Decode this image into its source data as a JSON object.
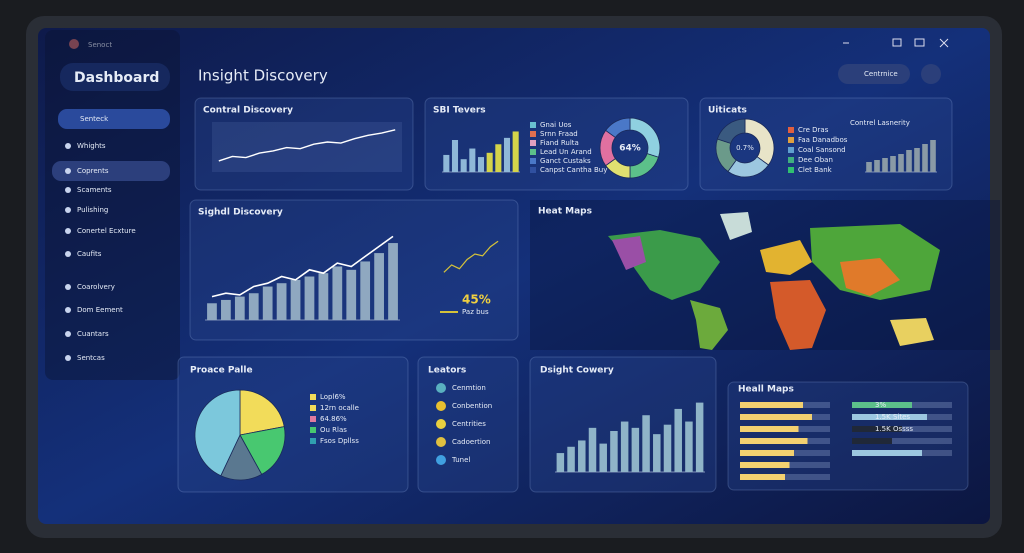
{
  "window": {
    "title": "Senoct"
  },
  "sidebar": {
    "title": "Dashboard",
    "dropdown": "Senteck",
    "items": [
      "Whights",
      "Coprents",
      "Scaments",
      "Pulishing",
      "Conertel Ecxture",
      "Caufits",
      "Coarolvery",
      "Dom Eement",
      "Cuantars",
      "Sentcas"
    ]
  },
  "header": {
    "title": "Insight Discovery",
    "button": "Centrnice"
  },
  "contral": {
    "title": "Contral Discovery",
    "values": [
      10,
      14,
      13,
      17,
      19,
      22,
      21,
      25,
      27,
      26,
      30,
      33,
      35,
      38
    ],
    "ylim": [
      0,
      45
    ],
    "color": "#ffffff"
  },
  "sbi": {
    "title": "SBI Tevers",
    "values": [
      16,
      30,
      12,
      22,
      14,
      18,
      26,
      32,
      38
    ],
    "colors": [
      "#8fb8d8",
      "#8fb8d8",
      "#8fb8d8",
      "#8fb8d8",
      "#8fb8d8",
      "#d4d44a",
      "#d4d44a",
      "#8fb8d8",
      "#d4d44a"
    ],
    "ylim": [
      0,
      45
    ],
    "donut": {
      "values": [
        30,
        20,
        15,
        20,
        15
      ],
      "colors": [
        "#8fd0e0",
        "#5cc08a",
        "#e0e070",
        "#e070a0",
        "#4a78c8"
      ],
      "center": "64%"
    },
    "legend": [
      "Gnai Uos",
      "Srnn Fraad",
      "Fiand Rulta",
      "Lead Un Arand",
      "Ganct Custaks",
      "Canpst Cantha Buy"
    ],
    "legend_colors": [
      "#6ac0d0",
      "#e07050",
      "#e0a0c0",
      "#5cc08a",
      "#4a78c8",
      "#3050a0"
    ]
  },
  "uiticats": {
    "title": "Uiticats",
    "donut": {
      "values": [
        35,
        25,
        20,
        20
      ],
      "colors": [
        "#e8e4c8",
        "#9cc7e0",
        "#6b9a8a",
        "#3a5a80"
      ],
      "center": "0.7%"
    },
    "legend": [
      "Cre Dras",
      "Faa Danadbos",
      "Coal Sansond",
      "Dee Oban",
      "Clet Bank"
    ],
    "legend_colors": [
      "#e06040",
      "#e0a040",
      "#60a0d0",
      "#40b080",
      "#30c070"
    ],
    "subtitle": "Contrel Lasnerity",
    "values": [
      5,
      6,
      7,
      8,
      9,
      11,
      12,
      14,
      16
    ],
    "ylim": [
      0,
      20
    ],
    "color": "#8a9aa6"
  },
  "signal": {
    "title": "Sighdl Discovery",
    "values": [
      10,
      12,
      14,
      16,
      20,
      22,
      24,
      26,
      28,
      32,
      30,
      35,
      40,
      46
    ],
    "line": [
      14,
      16,
      15,
      20,
      22,
      26,
      24,
      30,
      28,
      34,
      32,
      38,
      44,
      50
    ],
    "ylim": [
      0,
      55
    ],
    "color": "#8fa8c0",
    "small": {
      "values": [
        8,
        12,
        10,
        15,
        18,
        17,
        22,
        25
      ],
      "ylim": [
        0,
        30
      ],
      "color": "#d4c23a",
      "label": "45%",
      "legend": "Paz bus"
    }
  },
  "heatmap": {
    "title": "Heat Maps"
  },
  "pie": {
    "title": "Proace Palle",
    "values": [
      22,
      20,
      15,
      43
    ],
    "colors": [
      "#f2dc5a",
      "#48c870",
      "#5a7890",
      "#7cc8dc"
    ],
    "legend": [
      "Lopl6%",
      "12rn ocalle",
      "64.86%",
      "Ou Rlas",
      "Fsos Dpllss"
    ],
    "legend_colors": [
      "#f2dc5a",
      "#f2dc5a",
      "#e07aa0",
      "#48c870",
      "#30a0b0"
    ]
  },
  "leators": {
    "title": "Leators",
    "items": [
      "Cenmtion",
      "Conbention",
      "Centrities",
      "Cadoertion",
      "Tunel"
    ],
    "colors": [
      "#5ab0c0",
      "#e8c030",
      "#e8d040",
      "#e0c040",
      "#40a0e0"
    ]
  },
  "dsight": {
    "title": "Dsight Cowery",
    "values": [
      6,
      8,
      10,
      14,
      9,
      13,
      16,
      14,
      18,
      12,
      15,
      20,
      16,
      22
    ],
    "ylim": [
      0,
      26
    ],
    "color": "#8fb4c8"
  },
  "heall": {
    "title": "Heall Maps",
    "left": [
      70,
      80,
      65,
      75,
      60,
      55,
      50
    ],
    "left_color": "#f2d070",
    "right": [
      60,
      75,
      50,
      40,
      70
    ],
    "right_colors": [
      "#5cc08a",
      "#9cc7e0",
      "#202838",
      "#202838",
      "#9cc7e0"
    ],
    "tags": [
      "3%",
      "1.5K Sites",
      "1.5K Ossss"
    ]
  }
}
